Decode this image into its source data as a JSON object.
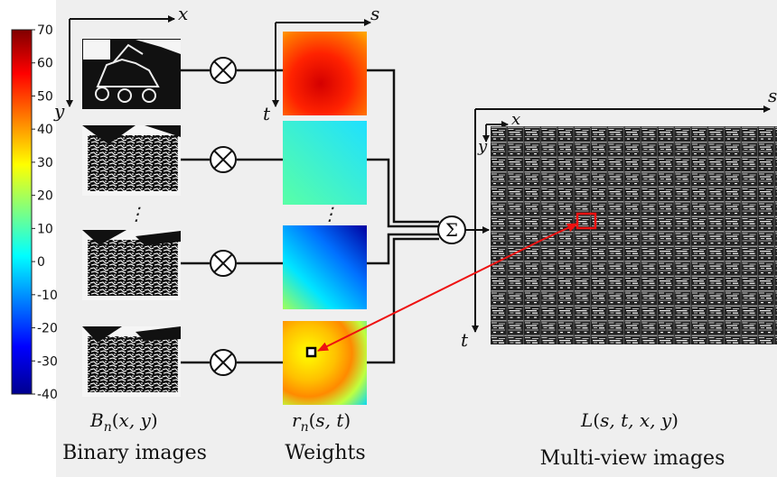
{
  "colorbar": {
    "ticks": [
      "70",
      "60",
      "50",
      "40",
      "30",
      "20",
      "10",
      "0",
      "-10",
      "-20",
      "-30",
      "-40"
    ]
  },
  "axes": {
    "left_x": "x",
    "left_y": "y",
    "weights_s": "s",
    "weights_t": "t",
    "mv_s": "s",
    "mv_x": "x",
    "mv_y": "y",
    "mv_t": "t"
  },
  "dots": "⋮",
  "sum_symbol": "Σ",
  "labels": {
    "binary_formula": "B_n(x, y)",
    "weights_formula": "r_n(s, t)",
    "multiview_formula": "L(s, t, x, y)",
    "binary_caption": "Binary images",
    "weights_caption": "Weights",
    "multiview_caption": "Multi-view images"
  },
  "colors": {
    "arrow": "#ee1111",
    "highlight": "#ee1111",
    "background": "#efefef"
  }
}
